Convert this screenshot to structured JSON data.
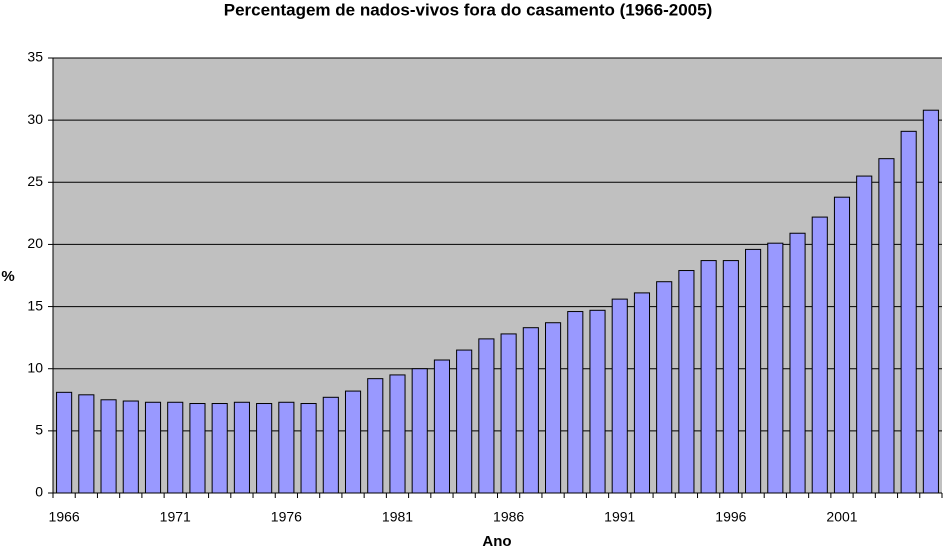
{
  "chart_data": {
    "type": "bar",
    "title": "Percentagem de nados-vivos fora do casamento (1966-2005)",
    "x_label": "Ano",
    "y_label": "%",
    "categories": [
      "1966",
      null,
      null,
      null,
      null,
      "1971",
      null,
      null,
      null,
      null,
      "1976",
      null,
      null,
      null,
      null,
      "1981",
      null,
      null,
      null,
      null,
      "1986",
      null,
      null,
      null,
      null,
      "1991",
      null,
      null,
      null,
      null,
      "1996",
      null,
      null,
      null,
      null,
      "2001",
      null,
      null,
      null,
      null
    ],
    "values": [
      8.1,
      7.9,
      7.5,
      7.4,
      7.3,
      7.3,
      7.2,
      7.2,
      7.3,
      7.2,
      7.3,
      7.2,
      7.7,
      8.2,
      9.2,
      9.5,
      10.0,
      10.7,
      11.5,
      12.4,
      12.8,
      13.3,
      13.7,
      14.6,
      14.7,
      15.6,
      16.1,
      17.0,
      17.9,
      18.7,
      18.7,
      19.6,
      20.1,
      20.9,
      22.2,
      23.8,
      25.5,
      26.9,
      29.1,
      30.8
    ],
    "color": "#9999ff",
    "plot_background": "#c0c0c0",
    "ylim": [
      0,
      35
    ],
    "yticks": [
      0,
      5,
      10,
      15,
      20,
      25,
      30,
      35
    ],
    "grid": true
  }
}
